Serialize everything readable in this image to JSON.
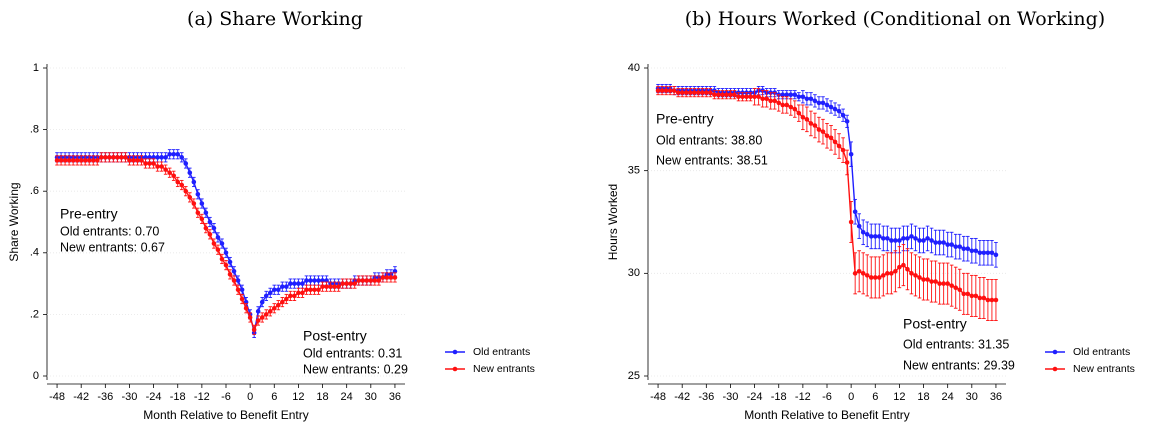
{
  "chart_data": [
    {
      "type": "line",
      "title": "(a) Share Working",
      "xlabel": "Month Relative to Benefit Entry",
      "ylabel": "Share Working",
      "x": [
        -48,
        -47,
        -46,
        -45,
        -44,
        -43,
        -42,
        -41,
        -40,
        -39,
        -38,
        -37,
        -36,
        -35,
        -34,
        -33,
        -32,
        -31,
        -30,
        -29,
        -28,
        -27,
        -26,
        -25,
        -24,
        -23,
        -22,
        -21,
        -20,
        -19,
        -18,
        -17,
        -16,
        -15,
        -14,
        -13,
        -12,
        -11,
        -10,
        -9,
        -8,
        -7,
        -6,
        -5,
        -4,
        -3,
        -2,
        -1,
        0,
        1,
        2,
        3,
        4,
        5,
        6,
        7,
        8,
        9,
        10,
        11,
        12,
        13,
        14,
        15,
        16,
        17,
        18,
        19,
        20,
        21,
        22,
        23,
        24,
        25,
        26,
        27,
        28,
        29,
        30,
        31,
        32,
        33,
        34,
        35,
        36
      ],
      "xlim": [
        -50.5,
        38.5
      ],
      "xticks": [
        -48,
        -42,
        -36,
        -30,
        -24,
        -18,
        -12,
        -6,
        0,
        6,
        12,
        18,
        24,
        30,
        36
      ],
      "ylim": [
        0,
        1
      ],
      "yticks": [
        0,
        {
          "value": 0.2,
          "label": ".2"
        },
        {
          "value": 0.4,
          "label": ".4"
        },
        {
          "value": 0.6,
          "label": ".6"
        },
        {
          "value": 0.8,
          "label": ".8"
        },
        1
      ],
      "grid": true,
      "legend": "right",
      "series": [
        {
          "name": "Old entrants",
          "color": "#1f1fff",
          "values": [
            0.71,
            0.71,
            0.71,
            0.71,
            0.71,
            0.71,
            0.71,
            0.71,
            0.71,
            0.71,
            0.71,
            0.71,
            0.71,
            0.71,
            0.71,
            0.71,
            0.71,
            0.71,
            0.71,
            0.71,
            0.71,
            0.71,
            0.71,
            0.71,
            0.71,
            0.71,
            0.71,
            0.71,
            0.72,
            0.72,
            0.72,
            0.71,
            0.69,
            0.66,
            0.63,
            0.59,
            0.56,
            0.53,
            0.5,
            0.48,
            0.45,
            0.43,
            0.4,
            0.37,
            0.34,
            0.31,
            0.28,
            0.24,
            0.2,
            0.14,
            0.21,
            0.24,
            0.26,
            0.27,
            0.28,
            0.28,
            0.29,
            0.29,
            0.3,
            0.3,
            0.3,
            0.3,
            0.31,
            0.31,
            0.31,
            0.31,
            0.31,
            0.31,
            0.3,
            0.3,
            0.3,
            0.3,
            0.3,
            0.3,
            0.31,
            0.31,
            0.31,
            0.31,
            0.31,
            0.32,
            0.32,
            0.32,
            0.33,
            0.33,
            0.34
          ],
          "errors": [
            0.015,
            0.015,
            0.015,
            0.015,
            0.015,
            0.015,
            0.015,
            0.015,
            0.015,
            0.015,
            0.015,
            0.015,
            0.015,
            0.015,
            0.015,
            0.015,
            0.015,
            0.015,
            0.015,
            0.015,
            0.015,
            0.015,
            0.015,
            0.015,
            0.015,
            0.015,
            0.015,
            0.015,
            0.015,
            0.015,
            0.015,
            0.015,
            0.015,
            0.015,
            0.015,
            0.015,
            0.015,
            0.015,
            0.015,
            0.015,
            0.015,
            0.015,
            0.015,
            0.015,
            0.015,
            0.015,
            0.015,
            0.015,
            0.015,
            0.015,
            0.015,
            0.015,
            0.015,
            0.015,
            0.015,
            0.015,
            0.015,
            0.015,
            0.015,
            0.015,
            0.015,
            0.015,
            0.015,
            0.015,
            0.015,
            0.015,
            0.015,
            0.015,
            0.015,
            0.015,
            0.015,
            0.015,
            0.015,
            0.015,
            0.015,
            0.015,
            0.015,
            0.015,
            0.015,
            0.015,
            0.015,
            0.015,
            0.015,
            0.015,
            0.015
          ]
        },
        {
          "name": "New entrants",
          "color": "#ff1010",
          "values": [
            0.7,
            0.7,
            0.7,
            0.7,
            0.7,
            0.7,
            0.7,
            0.7,
            0.7,
            0.7,
            0.7,
            0.71,
            0.71,
            0.71,
            0.71,
            0.71,
            0.71,
            0.71,
            0.7,
            0.7,
            0.7,
            0.7,
            0.69,
            0.69,
            0.69,
            0.68,
            0.68,
            0.67,
            0.66,
            0.65,
            0.63,
            0.62,
            0.6,
            0.58,
            0.56,
            0.53,
            0.51,
            0.48,
            0.46,
            0.43,
            0.41,
            0.38,
            0.36,
            0.33,
            0.31,
            0.28,
            0.25,
            0.22,
            0.19,
            0.15,
            0.18,
            0.19,
            0.2,
            0.21,
            0.22,
            0.23,
            0.24,
            0.25,
            0.26,
            0.26,
            0.27,
            0.27,
            0.28,
            0.28,
            0.28,
            0.28,
            0.29,
            0.29,
            0.29,
            0.29,
            0.29,
            0.3,
            0.3,
            0.3,
            0.3,
            0.31,
            0.31,
            0.31,
            0.31,
            0.31,
            0.31,
            0.32,
            0.32,
            0.32,
            0.32
          ],
          "errors": [
            0.015,
            0.015,
            0.015,
            0.015,
            0.015,
            0.015,
            0.015,
            0.015,
            0.015,
            0.015,
            0.015,
            0.015,
            0.015,
            0.015,
            0.015,
            0.015,
            0.015,
            0.015,
            0.015,
            0.015,
            0.015,
            0.015,
            0.015,
            0.015,
            0.015,
            0.015,
            0.015,
            0.015,
            0.015,
            0.015,
            0.015,
            0.015,
            0.015,
            0.015,
            0.015,
            0.015,
            0.015,
            0.015,
            0.015,
            0.015,
            0.015,
            0.015,
            0.015,
            0.015,
            0.015,
            0.015,
            0.015,
            0.015,
            0.015,
            0.015,
            0.015,
            0.015,
            0.015,
            0.015,
            0.015,
            0.015,
            0.015,
            0.015,
            0.015,
            0.015,
            0.015,
            0.015,
            0.015,
            0.015,
            0.015,
            0.015,
            0.015,
            0.015,
            0.015,
            0.015,
            0.015,
            0.015,
            0.015,
            0.015,
            0.015,
            0.015,
            0.015,
            0.015,
            0.015,
            0.015,
            0.015,
            0.015,
            0.015,
            0.015,
            0.015
          ]
        }
      ],
      "annotations": [
        {
          "text": "Pre-entry",
          "color": "#000000"
        },
        {
          "text": "Old entrants: 0.70",
          "color": "#1f1fff"
        },
        {
          "text": "New entrants: 0.67",
          "color": "#ff1010"
        },
        {
          "text": "Post-entry",
          "color": "#000000"
        },
        {
          "text": "Old entrants: 0.31",
          "color": "#1f1fff"
        },
        {
          "text": "New entrants: 0.29",
          "color": "#ff1010"
        }
      ]
    },
    {
      "type": "line",
      "title": "(b) Hours Worked (Conditional on Working)",
      "xlabel": "Month Relative to Benefit Entry",
      "ylabel": "Hours Worked",
      "x": [
        -48,
        -47,
        -46,
        -45,
        -44,
        -43,
        -42,
        -41,
        -40,
        -39,
        -38,
        -37,
        -36,
        -35,
        -34,
        -33,
        -32,
        -31,
        -30,
        -29,
        -28,
        -27,
        -26,
        -25,
        -24,
        -23,
        -22,
        -21,
        -20,
        -19,
        -18,
        -17,
        -16,
        -15,
        -14,
        -13,
        -12,
        -11,
        -10,
        -9,
        -8,
        -7,
        -6,
        -5,
        -4,
        -3,
        -2,
        -1,
        0,
        1,
        2,
        3,
        4,
        5,
        6,
        7,
        8,
        9,
        10,
        11,
        12,
        13,
        14,
        15,
        16,
        17,
        18,
        19,
        20,
        21,
        22,
        23,
        24,
        25,
        26,
        27,
        28,
        29,
        30,
        31,
        32,
        33,
        34,
        35,
        36
      ],
      "xlim": [
        -50.5,
        38.5
      ],
      "xticks": [
        -48,
        -42,
        -36,
        -30,
        -24,
        -18,
        -12,
        -6,
        0,
        6,
        12,
        18,
        24,
        30,
        36
      ],
      "ylim": [
        25,
        40
      ],
      "yticks": [
        25,
        30,
        35,
        40
      ],
      "grid": true,
      "legend": "right",
      "series": [
        {
          "name": "Old entrants",
          "color": "#1f1fff",
          "values": [
            39.0,
            39.0,
            39.0,
            39.0,
            38.9,
            38.9,
            38.9,
            38.9,
            38.9,
            38.9,
            38.9,
            38.9,
            38.9,
            38.9,
            38.9,
            38.8,
            38.8,
            38.8,
            38.8,
            38.8,
            38.8,
            38.8,
            38.8,
            38.8,
            38.8,
            38.9,
            38.9,
            38.8,
            38.8,
            38.8,
            38.7,
            38.7,
            38.7,
            38.7,
            38.7,
            38.6,
            38.6,
            38.5,
            38.5,
            38.4,
            38.3,
            38.3,
            38.2,
            38.1,
            38.0,
            37.9,
            37.7,
            37.4,
            35.8,
            33.0,
            32.3,
            32.0,
            31.9,
            31.8,
            31.8,
            31.8,
            31.7,
            31.7,
            31.6,
            31.6,
            31.6,
            31.7,
            31.7,
            31.8,
            31.7,
            31.6,
            31.6,
            31.7,
            31.6,
            31.5,
            31.5,
            31.5,
            31.4,
            31.4,
            31.3,
            31.3,
            31.2,
            31.2,
            31.1,
            31.1,
            31.0,
            31.0,
            31.0,
            31.0,
            30.9
          ],
          "errors": [
            0.2,
            0.2,
            0.2,
            0.2,
            0.2,
            0.2,
            0.2,
            0.2,
            0.2,
            0.2,
            0.2,
            0.2,
            0.2,
            0.2,
            0.2,
            0.2,
            0.2,
            0.2,
            0.2,
            0.2,
            0.2,
            0.2,
            0.2,
            0.2,
            0.2,
            0.2,
            0.2,
            0.2,
            0.2,
            0.2,
            0.2,
            0.2,
            0.2,
            0.2,
            0.2,
            0.2,
            0.3,
            0.3,
            0.3,
            0.3,
            0.3,
            0.3,
            0.3,
            0.3,
            0.3,
            0.3,
            0.3,
            0.3,
            0.6,
            0.6,
            0.6,
            0.6,
            0.6,
            0.6,
            0.6,
            0.6,
            0.6,
            0.6,
            0.6,
            0.6,
            0.6,
            0.6,
            0.6,
            0.6,
            0.6,
            0.6,
            0.6,
            0.6,
            0.6,
            0.6,
            0.6,
            0.6,
            0.6,
            0.6,
            0.6,
            0.6,
            0.6,
            0.6,
            0.6,
            0.6,
            0.6,
            0.6,
            0.6,
            0.6,
            0.6
          ]
        },
        {
          "name": "New entrants",
          "color": "#ff1010",
          "values": [
            38.9,
            38.9,
            38.9,
            38.9,
            38.9,
            38.8,
            38.8,
            38.8,
            38.8,
            38.8,
            38.8,
            38.8,
            38.8,
            38.8,
            38.7,
            38.7,
            38.7,
            38.7,
            38.7,
            38.7,
            38.6,
            38.6,
            38.6,
            38.6,
            38.6,
            38.6,
            38.5,
            38.5,
            38.4,
            38.4,
            38.3,
            38.2,
            38.2,
            38.1,
            38.0,
            37.8,
            37.6,
            37.5,
            37.3,
            37.2,
            37.0,
            36.9,
            36.7,
            36.6,
            36.4,
            36.2,
            36.0,
            35.4,
            32.5,
            30.0,
            30.1,
            30.0,
            29.9,
            29.8,
            29.8,
            29.8,
            29.9,
            30.0,
            30.0,
            30.1,
            30.3,
            30.4,
            30.2,
            30.0,
            29.9,
            29.8,
            29.7,
            29.7,
            29.6,
            29.6,
            29.5,
            29.5,
            29.5,
            29.4,
            29.3,
            29.2,
            29.0,
            29.0,
            28.9,
            28.9,
            28.8,
            28.8,
            28.7,
            28.7,
            28.7
          ],
          "errors": [
            0.2,
            0.2,
            0.2,
            0.2,
            0.2,
            0.2,
            0.2,
            0.2,
            0.2,
            0.2,
            0.2,
            0.2,
            0.2,
            0.2,
            0.2,
            0.2,
            0.2,
            0.2,
            0.2,
            0.2,
            0.2,
            0.2,
            0.2,
            0.2,
            0.4,
            0.4,
            0.4,
            0.4,
            0.4,
            0.4,
            0.4,
            0.4,
            0.4,
            0.4,
            0.4,
            0.4,
            0.6,
            0.6,
            0.6,
            0.6,
            0.6,
            0.6,
            0.6,
            0.6,
            0.6,
            0.6,
            0.6,
            0.6,
            1.0,
            1.0,
            1.0,
            1.0,
            1.0,
            1.0,
            1.0,
            1.0,
            1.0,
            1.0,
            1.0,
            1.0,
            1.0,
            1.0,
            1.0,
            1.0,
            1.0,
            1.0,
            1.0,
            1.0,
            1.0,
            1.0,
            1.0,
            1.0,
            1.0,
            1.0,
            1.0,
            1.0,
            1.0,
            1.0,
            1.0,
            1.0,
            1.0,
            1.0,
            1.0,
            1.0,
            1.0
          ]
        }
      ],
      "annotations": [
        {
          "text": "Pre-entry",
          "color": "#000000"
        },
        {
          "text": "Old entrants: 38.80",
          "color": "#1f1fff"
        },
        {
          "text": "New entrants: 38.51",
          "color": "#ff1010"
        },
        {
          "text": "Post-entry",
          "color": "#000000"
        },
        {
          "text": "Old entrants: 31.35",
          "color": "#1f1fff"
        },
        {
          "text": "New entrants: 29.39",
          "color": "#ff1010"
        }
      ]
    }
  ]
}
